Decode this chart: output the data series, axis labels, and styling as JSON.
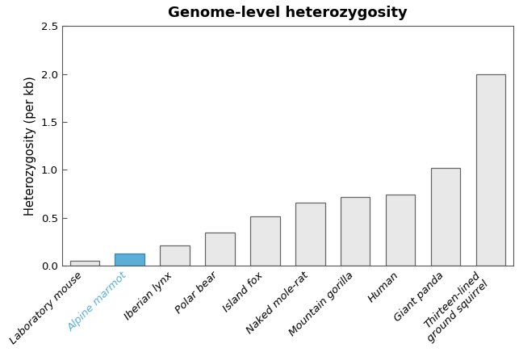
{
  "title": "Genome-level heterozygosity",
  "ylabel": "Heterozygosity (per kb)",
  "categories": [
    "Laboratory mouse",
    "Alpine marmot",
    "Iberian lynx",
    "Polar bear",
    "Island fox",
    "Naked mole-rat",
    "Mountain gorilla",
    "Human",
    "Giant panda",
    "Thirteen-lined\nground squirrel"
  ],
  "values": [
    0.05,
    0.13,
    0.21,
    0.35,
    0.52,
    0.66,
    0.72,
    0.74,
    1.02,
    2.0
  ],
  "bar_colors": [
    "#e8e8e8",
    "#5bafd6",
    "#e8e8e8",
    "#e8e8e8",
    "#e8e8e8",
    "#e8e8e8",
    "#e8e8e8",
    "#e8e8e8",
    "#e8e8e8",
    "#e8e8e8"
  ],
  "bar_edge_colors": [
    "#666666",
    "#3a85a8",
    "#666666",
    "#666666",
    "#666666",
    "#666666",
    "#666666",
    "#666666",
    "#666666",
    "#666666"
  ],
  "highlight_tick_index": 1,
  "highlight_tick_color": "#5bafd6",
  "ylim": [
    0,
    2.5
  ],
  "yticks": [
    0.0,
    0.5,
    1.0,
    1.5,
    2.0,
    2.5
  ],
  "title_fontsize": 13,
  "tick_label_fontsize": 9.5,
  "ylabel_fontsize": 10.5,
  "background_color": "#ffffff",
  "figsize": [
    6.43,
    4.36
  ],
  "dpi": 100
}
